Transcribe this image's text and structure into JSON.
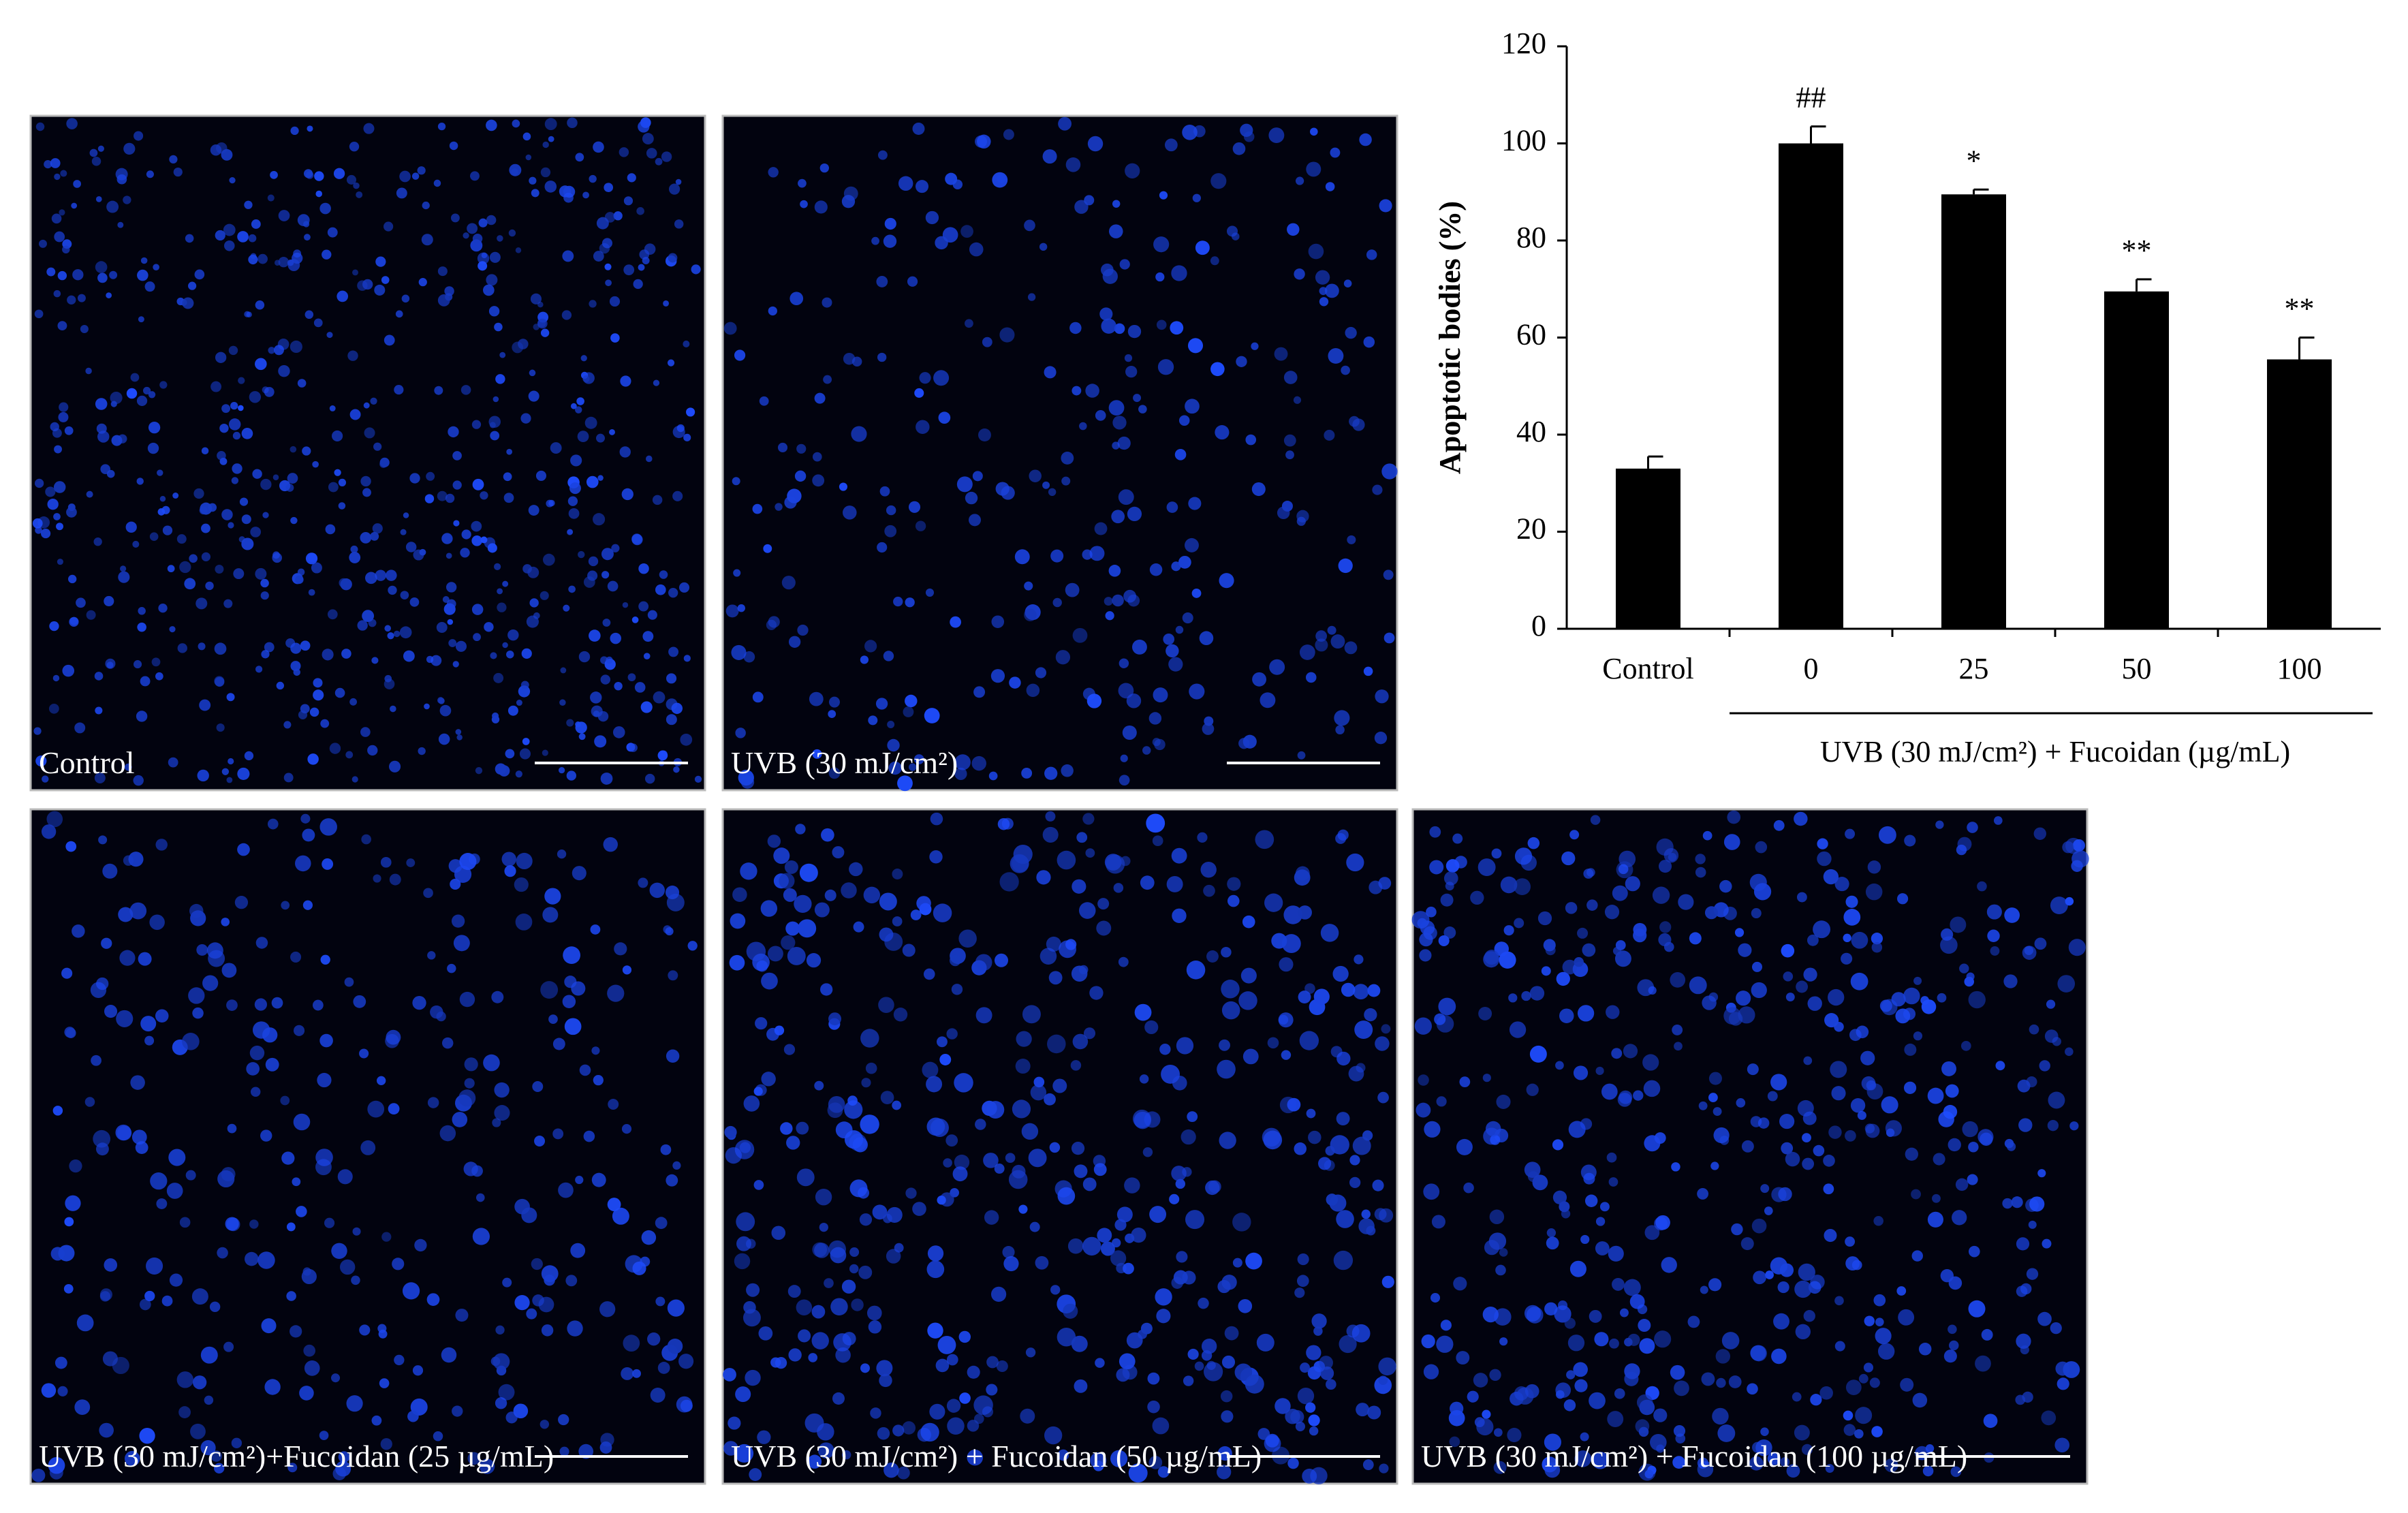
{
  "panels": [
    {
      "caption": "Control"
    },
    {
      "caption": "UVB (30 mJ/cm²)"
    },
    {
      "caption": "UVB (30 mJ/cm²)+Fucoidan (25 µg/mL)"
    },
    {
      "caption": "UVB (30 mJ/cm²) + Fucoidan (50 µg/mL)"
    },
    {
      "caption": "UVB (30 mJ/cm²) + Fucoidan (100 µg/mL)"
    }
  ],
  "chart_data": {
    "type": "bar",
    "y_label": "Apoptotic bodies (%)",
    "group_label": "UVB (30 mJ/cm²) + Fucoidan (µg/mL)",
    "categories": [
      "Control",
      "0",
      "25",
      "50",
      "100"
    ],
    "values": [
      33,
      100,
      89.5,
      69.5,
      55.5
    ],
    "errors": [
      2.5,
      3.5,
      1,
      2.5,
      4.5
    ],
    "significance": [
      null,
      "##",
      "*",
      "**",
      "**"
    ],
    "color": "#000000",
    "ylim": [
      0,
      120
    ],
    "yticks": [
      0,
      20,
      40,
      60,
      80,
      100,
      120
    ],
    "grid": false
  }
}
